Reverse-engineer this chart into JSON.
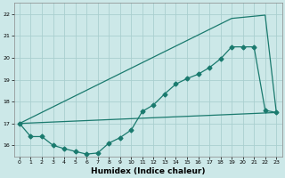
{
  "xlabel": "Humidex (Indice chaleur)",
  "bg_color": "#cce8e8",
  "line_color": "#1a7a6e",
  "grid_color": "#aacfcf",
  "xlim": [
    -0.5,
    23.5
  ],
  "ylim": [
    15.5,
    22.5
  ],
  "yticks": [
    16,
    17,
    18,
    19,
    20,
    21,
    22
  ],
  "xticks": [
    0,
    1,
    2,
    3,
    4,
    5,
    6,
    7,
    8,
    9,
    10,
    11,
    12,
    13,
    14,
    15,
    16,
    17,
    18,
    19,
    20,
    21,
    22,
    23
  ],
  "line1_x": [
    0,
    1,
    2,
    3,
    4,
    5,
    6,
    7,
    8,
    9,
    10,
    11,
    12,
    13,
    14,
    15,
    16,
    17,
    18,
    19,
    20,
    21,
    22,
    23
  ],
  "line1_y": [
    17.0,
    16.4,
    16.4,
    16.0,
    15.85,
    15.72,
    15.6,
    15.65,
    16.1,
    16.35,
    16.7,
    17.55,
    17.85,
    18.35,
    18.8,
    19.05,
    19.25,
    19.55,
    19.95,
    20.5,
    20.5,
    20.5,
    17.6,
    17.5
  ],
  "line2_x": [
    0,
    23
  ],
  "line2_y": [
    17.0,
    17.5
  ],
  "line3_x": [
    0,
    19,
    22,
    23
  ],
  "line3_y": [
    17.0,
    21.8,
    21.95,
    17.5
  ]
}
